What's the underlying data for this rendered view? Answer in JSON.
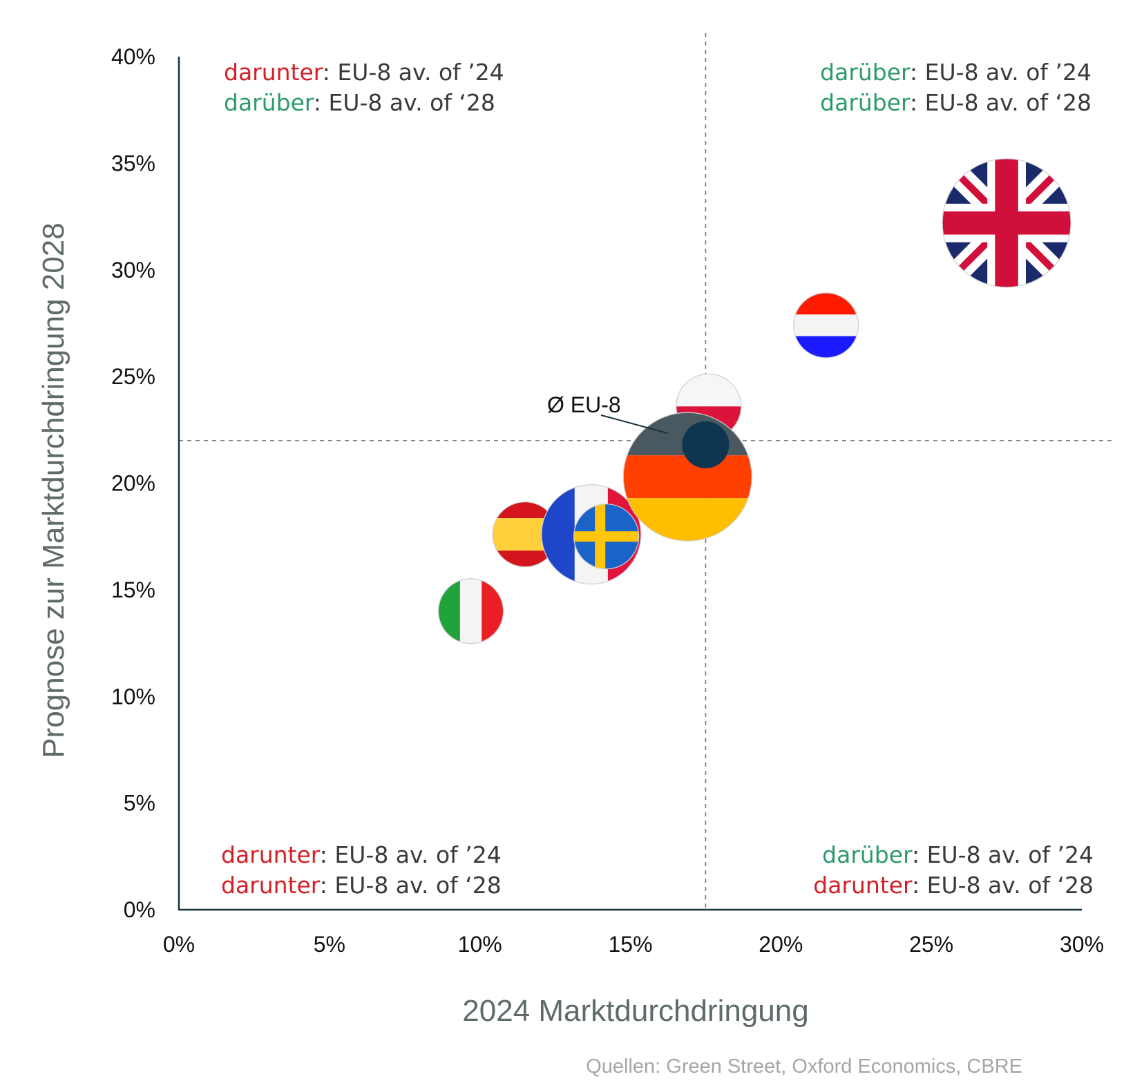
{
  "chart_data": {
    "type": "scatter",
    "title": "",
    "xlabel": "2024 Marktdurchdringung",
    "ylabel": "Prognose zur Marktdurchdringung 2028",
    "xlim": [
      0,
      30
    ],
    "ylim": [
      0,
      40
    ],
    "x_ticks": [
      "0%",
      "5%",
      "10%",
      "15%",
      "20%",
      "25%",
      "30%"
    ],
    "y_ticks": [
      "0%",
      "5%",
      "10%",
      "15%",
      "20%",
      "25%",
      "30%",
      "35%",
      "40%"
    ],
    "grid": false,
    "reference_lines": {
      "x": 17.5,
      "y": 22.0,
      "style": "dashed"
    },
    "average": {
      "label": "Ø EU-8",
      "x": 17.5,
      "y": 21.8
    },
    "points": [
      {
        "flag": "united-kingdom-flag",
        "x": 27.5,
        "y": 32.2,
        "size": "large"
      },
      {
        "flag": "netherlands-flag",
        "x": 21.5,
        "y": 27.4,
        "size": "small"
      },
      {
        "flag": "poland-flag",
        "x": 17.6,
        "y": 23.6,
        "size": "small"
      },
      {
        "flag": "germany-flag",
        "x": 16.9,
        "y": 20.3,
        "size": "large"
      },
      {
        "flag": "france-flag",
        "x": 13.7,
        "y": 17.6,
        "size": "medium"
      },
      {
        "flag": "sweden-flag",
        "x": 14.2,
        "y": 17.5,
        "size": "small"
      },
      {
        "flag": "spain-flag",
        "x": 11.5,
        "y": 17.6,
        "size": "small"
      },
      {
        "flag": "italy-flag",
        "x": 9.7,
        "y": 14.0,
        "size": "small"
      }
    ],
    "quadrant_labels": {
      "top_left": {
        "line1_word": "darunter",
        "line1_rest": ": EU-8 av. of ’24",
        "line2_word": "darüber",
        "line2_rest": ": EU-8 av. of ‘28"
      },
      "top_right": {
        "line1_word": "darüber",
        "line1_rest": ": EU-8 av. of ’24",
        "line2_word": "darüber",
        "line2_rest": ": EU-8 av. of ‘28"
      },
      "bottom_left": {
        "line1_word": "darunter",
        "line1_rest": ": EU-8 av. of ’24",
        "line2_word": "darunter",
        "line2_rest": ": EU-8 av. of ‘28"
      },
      "bottom_right": {
        "line1_word": "darüber",
        "line1_rest": ": EU-8 av. of ’24",
        "line2_word": "darunter",
        "line2_rest": ": EU-8 av. of ‘28"
      }
    },
    "colors": {
      "darunter": "#d32027",
      "darüber": "#2e9a6a",
      "axis": "#17323f",
      "average_marker": "#0f3651",
      "axis_title": "#5f6a6a"
    }
  },
  "source": "Quellen: Green Street, Oxford Economics, CBRE"
}
